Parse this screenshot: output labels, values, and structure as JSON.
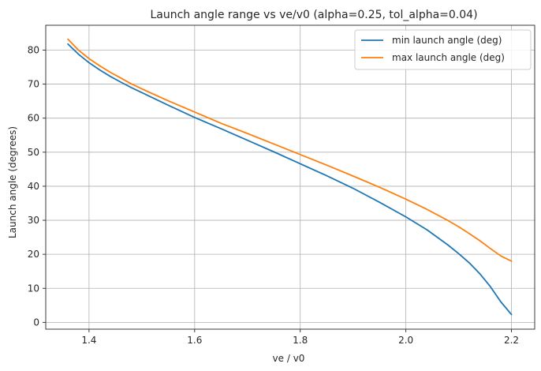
{
  "chart_data": {
    "type": "line",
    "title": "Launch angle range vs ve/v0 (alpha=0.25, tol_alpha=0.04)",
    "xlabel": "ve / v0",
    "ylabel": "Launch angle (degrees)",
    "xlim": [
      1.318,
      2.244
    ],
    "ylim": [
      -2.0,
      87.3
    ],
    "xticks": [
      1.4,
      1.6,
      1.8,
      2.0,
      2.2
    ],
    "xtick_labels": [
      "1.4",
      "1.6",
      "1.8",
      "2.0",
      "2.2"
    ],
    "yticks": [
      0,
      10,
      20,
      30,
      40,
      50,
      60,
      70,
      80
    ],
    "ytick_labels": [
      "0",
      "10",
      "20",
      "30",
      "40",
      "50",
      "60",
      "70",
      "80"
    ],
    "grid": true,
    "legend_position": "top-right",
    "series": [
      {
        "name": "min launch angle (deg)",
        "color": "#1f77b4",
        "x": [
          1.36,
          1.38,
          1.4,
          1.42,
          1.44,
          1.46,
          1.48,
          1.5,
          1.55,
          1.6,
          1.65,
          1.7,
          1.75,
          1.8,
          1.85,
          1.9,
          1.95,
          2.0,
          2.04,
          2.08,
          2.1,
          2.12,
          2.14,
          2.16,
          2.18,
          2.2
        ],
        "y": [
          81.8,
          78.8,
          76.3,
          74.2,
          72.3,
          70.6,
          69.0,
          67.5,
          63.8,
          60.2,
          56.9,
          53.5,
          50.1,
          46.6,
          43.1,
          39.4,
          35.3,
          31.0,
          27.2,
          22.7,
          20.2,
          17.5,
          14.3,
          10.5,
          6.0,
          2.3
        ]
      },
      {
        "name": "max launch angle (deg)",
        "color": "#ff7f0e",
        "x": [
          1.36,
          1.38,
          1.4,
          1.42,
          1.44,
          1.46,
          1.48,
          1.5,
          1.55,
          1.6,
          1.65,
          1.7,
          1.75,
          1.8,
          1.85,
          1.9,
          1.95,
          2.0,
          2.04,
          2.08,
          2.1,
          2.12,
          2.14,
          2.16,
          2.18,
          2.2
        ],
        "y": [
          83.2,
          80.0,
          77.5,
          75.4,
          73.5,
          71.8,
          70.1,
          68.6,
          65.1,
          61.8,
          58.5,
          55.5,
          52.4,
          49.3,
          46.2,
          43.0,
          39.7,
          36.2,
          33.2,
          29.9,
          28.1,
          26.1,
          24.0,
          21.7,
          19.5,
          18.0
        ]
      }
    ]
  }
}
